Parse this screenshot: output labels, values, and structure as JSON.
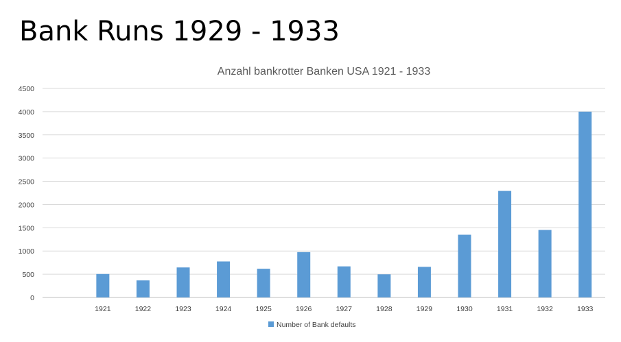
{
  "slide": {
    "title": "Bank Runs 1929 - 1933"
  },
  "chart_data": {
    "type": "bar",
    "title": "Anzahl bankrotter Banken USA 1921 - 1933",
    "xlabel": "",
    "ylabel": "",
    "categories": [
      "",
      "1921",
      "1922",
      "1923",
      "1924",
      "1925",
      "1926",
      "1927",
      "1928",
      "1929",
      "1930",
      "1931",
      "1932",
      "1933"
    ],
    "series": [
      {
        "name": "Number of Bank defaults",
        "color": "#5b9bd5",
        "values": [
          null,
          505,
          367,
          646,
          775,
          618,
          976,
          669,
          498,
          659,
          1350,
          2293,
          1453,
          4000
        ]
      }
    ],
    "ylim": [
      0,
      4500
    ],
    "yticks": [
      0,
      500,
      1000,
      1500,
      2000,
      2500,
      3000,
      3500,
      4000,
      4500
    ],
    "grid": true,
    "legend_position": "bottom"
  }
}
